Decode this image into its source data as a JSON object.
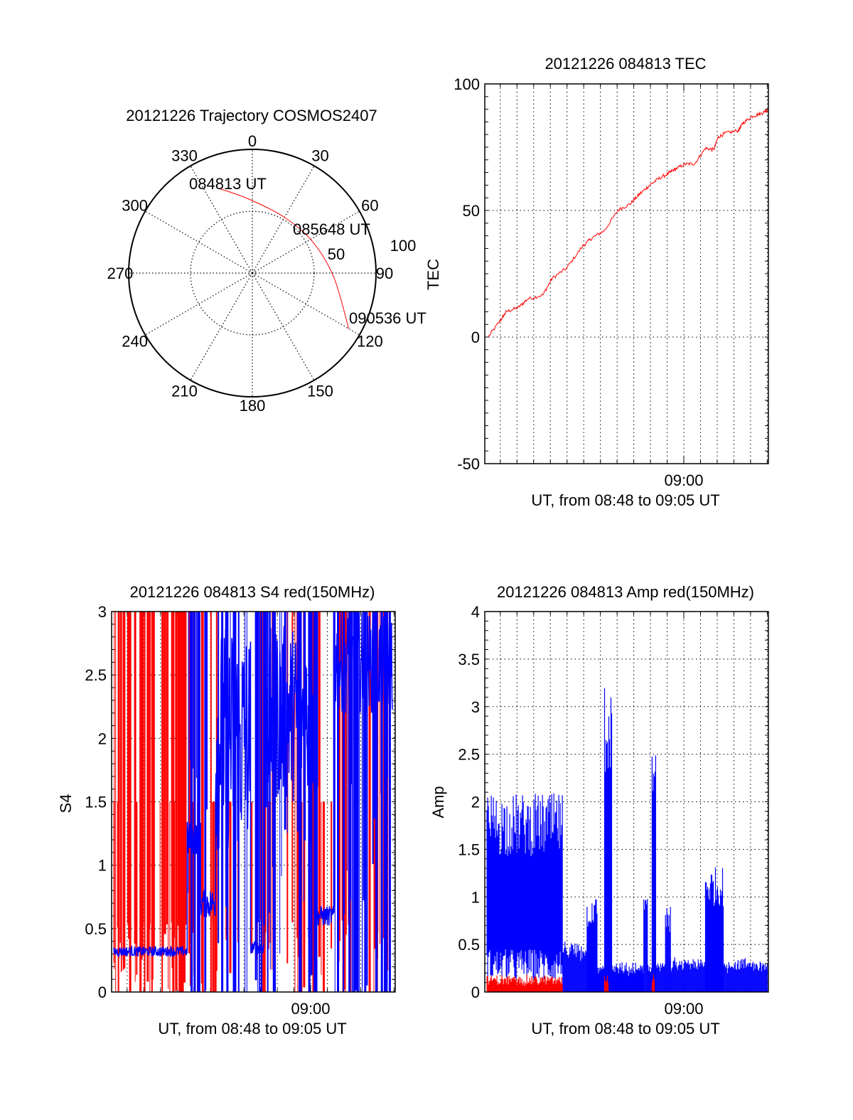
{
  "colors": {
    "red": "#ff0000",
    "blue": "#0000ff",
    "axis": "#000000"
  },
  "chart_data": [
    {
      "type": "polar",
      "title": "20121226 Trajectory COSMOS2407",
      "azimuth_labels": [
        "0",
        "30",
        "60",
        "90",
        "120",
        "150",
        "180",
        "210",
        "240",
        "270",
        "300",
        "330"
      ],
      "radius_labels": [
        "50",
        "100"
      ],
      "rlim": [
        0,
        100
      ],
      "annotations": [
        "084813 UT",
        "085648 UT",
        "090536 UT"
      ],
      "trajectory": {
        "az": [
          338,
          357,
          30,
          63,
          93,
          120
        ],
        "r": [
          74,
          60,
          52,
          55,
          66,
          90
        ]
      }
    },
    {
      "type": "line",
      "title": "20121226 084813 TEC",
      "ylabel": "TEC",
      "xlabel": "UT, from 08:48 to 09:05 UT",
      "x_tick_label": "09:00",
      "x_tick_value": 12,
      "x_units": "minutes after 08:48",
      "xlim": [
        0.07,
        17.07
      ],
      "ylim": [
        -50,
        100
      ],
      "yticks": [
        "100",
        "50",
        "0",
        "-50"
      ],
      "x": [
        0.27,
        1.02,
        1.36,
        2.08,
        2.64,
        3.56,
        4.12,
        4.97,
        5.95,
        6.53,
        7.23,
        8.08,
        8.77,
        9.34,
        9.9,
        10.47,
        11.1,
        11.46,
        12.09,
        12.65,
        13.3,
        13.79,
        14.06,
        14.49,
        15.27,
        15.54,
        16.12,
        16.68,
        17.04
      ],
      "y": [
        0,
        6.7,
        10,
        11.7,
        15,
        16.7,
        23.3,
        27.2,
        36,
        39.3,
        42,
        50.3,
        52.5,
        56.4,
        59.7,
        62.5,
        64.7,
        66.3,
        68.3,
        68.5,
        74.6,
        74,
        79,
        80.5,
        81.6,
        84.5,
        87.3,
        88.4,
        90
      ],
      "series_color": "red"
    },
    {
      "type": "line",
      "title": "20121226 084813 S4 red(150MHz)",
      "ylabel": "S4",
      "xlabel": "UT, from 08:48 to 09:05 UT",
      "x_tick_label": "09:00",
      "x_tick_value": 12,
      "xlim": [
        0.07,
        17.07
      ],
      "ylim": [
        0,
        3
      ],
      "yticks": [
        "3",
        "2.5",
        "2",
        "1.5",
        "1",
        "0.5",
        "0"
      ],
      "series": [
        {
          "name": "red",
          "color": "red",
          "spikes": [
            {
              "from": 0.2,
              "to": 4.6,
              "count": 70,
              "top": 3
            },
            {
              "from": 4.6,
              "to": 9.8,
              "count": 40,
              "top": 3
            },
            {
              "from": 9.8,
              "to": 12.3,
              "count": 14,
              "top": 3
            },
            {
              "from": 12.3,
              "to": 16.8,
              "count": 30,
              "top": 3
            }
          ]
        },
        {
          "name": "blue",
          "color": "blue",
          "trace": [
            {
              "from": 0.2,
              "to": 4.6,
              "level": 0.32,
              "noise": 0.04
            },
            {
              "from": 4.6,
              "to": 5.4,
              "level": 1.2,
              "noise": 0.15
            },
            {
              "from": 5.4,
              "to": 6.3,
              "level": 0.7,
              "noise": 0.12
            },
            {
              "from": 6.3,
              "to": 8.4,
              "level": 2.0,
              "noise": 0.9
            },
            {
              "from": 8.4,
              "to": 9.2,
              "level": 0.35,
              "noise": 0.05
            },
            {
              "from": 9.2,
              "to": 12.4,
              "level": 2.2,
              "noise": 0.7
            },
            {
              "from": 12.4,
              "to": 13.4,
              "level": 0.6,
              "noise": 0.08
            },
            {
              "from": 13.4,
              "to": 16.9,
              "level": 2.6,
              "noise": 0.4
            }
          ],
          "spikes": [
            {
              "from": 4.6,
              "to": 9.2,
              "count": 40,
              "top": 3
            },
            {
              "from": 9.2,
              "to": 12.4,
              "count": 35,
              "top": 3
            },
            {
              "from": 13.4,
              "to": 16.9,
              "count": 40,
              "top": 3
            }
          ]
        }
      ]
    },
    {
      "type": "area",
      "title": "20121226 084813 Amp red(150MHz)",
      "ylabel": "Amp",
      "xlabel": "UT, from 08:48 to 09:05 UT",
      "x_tick_label": "09:00",
      "x_tick_value": 12,
      "xlim": [
        0.07,
        17.07
      ],
      "ylim": [
        0,
        4
      ],
      "yticks": [
        "4",
        "3.5",
        "3",
        "2.5",
        "2",
        "1.5",
        "1",
        "0.5",
        "0"
      ],
      "series": [
        {
          "name": "blue",
          "color": "blue",
          "envelope": [
            {
              "from": 0.2,
              "to": 4.75,
              "min": 0.35,
              "max": 1.9
            },
            {
              "from": 4.75,
              "to": 6.2,
              "min": 0.0,
              "max": 0.4
            },
            {
              "from": 6.2,
              "to": 6.8,
              "min": 0.0,
              "max": 0.85
            },
            {
              "from": 6.8,
              "to": 7.25,
              "min": 0.0,
              "max": 0.2
            },
            {
              "from": 7.25,
              "to": 7.7,
              "min": 0.0,
              "max": 3.0
            },
            {
              "from": 7.7,
              "to": 9.6,
              "min": 0.0,
              "max": 0.2
            },
            {
              "from": 9.6,
              "to": 9.85,
              "min": 0.0,
              "max": 0.9
            },
            {
              "from": 9.85,
              "to": 10.1,
              "min": 0.0,
              "max": 0.2
            },
            {
              "from": 10.1,
              "to": 10.35,
              "min": 0.0,
              "max": 2.6
            },
            {
              "from": 10.35,
              "to": 10.9,
              "min": 0.0,
              "max": 0.25
            },
            {
              "from": 10.9,
              "to": 11.2,
              "min": 0.0,
              "max": 0.75
            },
            {
              "from": 11.2,
              "to": 13.3,
              "min": 0.0,
              "max": 0.25
            },
            {
              "from": 13.3,
              "to": 14.4,
              "min": 0.0,
              "max": 1.2
            },
            {
              "from": 14.4,
              "to": 17.0,
              "min": 0.0,
              "max": 0.25
            }
          ]
        },
        {
          "name": "red",
          "color": "red",
          "envelope": [
            {
              "from": 0.2,
              "to": 4.75,
              "min": 0.0,
              "max": 0.08
            },
            {
              "from": 7.25,
              "to": 7.5,
              "min": 0.0,
              "max": 0.1
            },
            {
              "from": 10.1,
              "to": 10.25,
              "min": 0.0,
              "max": 0.1
            }
          ]
        }
      ]
    }
  ]
}
